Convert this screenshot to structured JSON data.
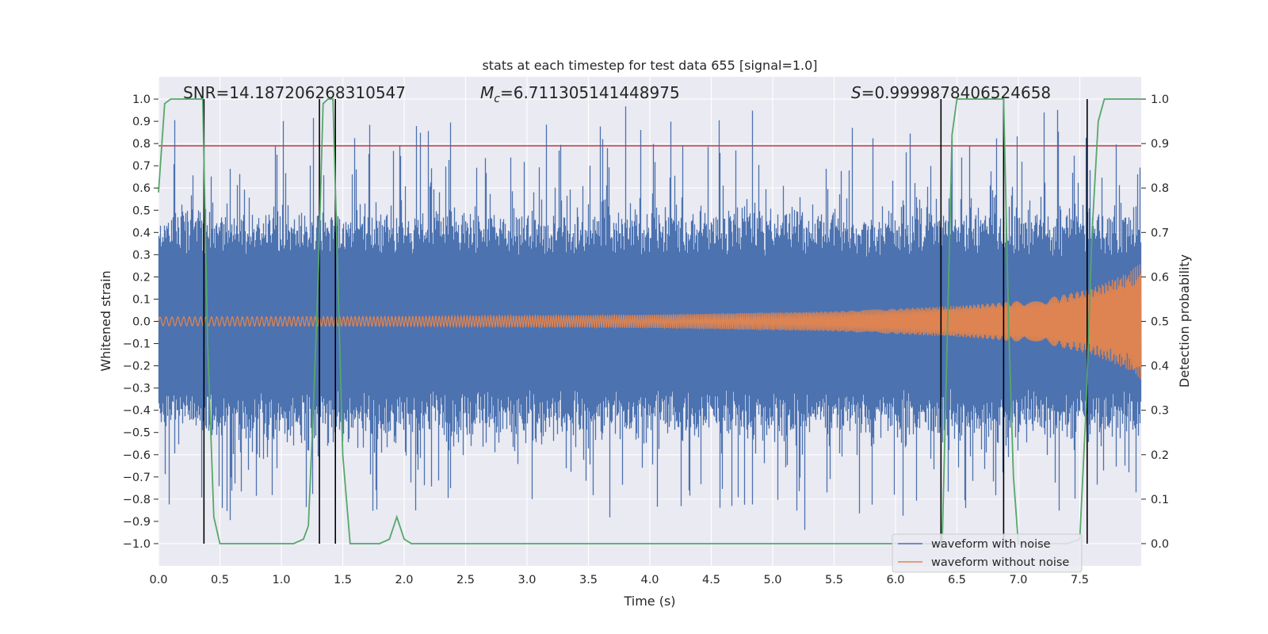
{
  "chart_data": {
    "type": "line",
    "title": "stats at each timestep for test data 655 [signal=1.0]",
    "xlabel": "Time (s)",
    "ylabel": "Whitened strain",
    "y2label": "Detection probability",
    "xlim": [
      0.0,
      8.0
    ],
    "ylim": [
      -1.1,
      1.1
    ],
    "y2lim": [
      -0.05,
      1.05
    ],
    "xticks": [
      "0.0",
      "0.5",
      "1.0",
      "1.5",
      "2.0",
      "2.5",
      "3.0",
      "3.5",
      "4.0",
      "4.5",
      "5.0",
      "5.5",
      "6.0",
      "6.5",
      "7.0",
      "7.5"
    ],
    "yticks": [
      "1.0",
      "0.9",
      "0.8",
      "0.7",
      "0.6",
      "0.5",
      "0.4",
      "0.3",
      "0.2",
      "0.1",
      "0.0",
      "−0.1",
      "−0.2",
      "−0.3",
      "−0.4",
      "−0.5",
      "−0.6",
      "−0.7",
      "−0.8",
      "−0.9",
      "−1.0"
    ],
    "y2ticks": [
      "1.0",
      "0.9",
      "0.8",
      "0.7",
      "0.6",
      "0.5",
      "0.4",
      "0.3",
      "0.2",
      "0.1",
      "0.0"
    ],
    "annotations": {
      "snr": "SNR=14.187206268310547",
      "mc_symbol": "M",
      "mc_sub": "c",
      "mc_value": "=6.711305141448975",
      "s_symbol": "S",
      "s_value": "=0.9999878406524658"
    },
    "threshold_line": {
      "y": 0.79,
      "color": "#c03d3e"
    },
    "vertical_markers": [
      0.37,
      1.31,
      1.44,
      6.37,
      6.88,
      7.56
    ],
    "legend": {
      "placement": "bottom-right",
      "entries": [
        "waveform with noise",
        "waveform without noise"
      ]
    },
    "series": [
      {
        "name": "waveform with noise",
        "color": "#4c72b0",
        "description": "noisy whitened strain, envelope approx. +/-0.4 with spikes up to 1.0 / down to -0.95",
        "envelope_upper": 0.38,
        "envelope_lower": -0.4,
        "spike_max": 0.99,
        "spike_min": -0.95
      },
      {
        "name": "waveform without noise",
        "color": "#dd8452",
        "description": "chirp waveform, amplitude grows from ~0.02 to ~0.27 near t=8",
        "amplitude": [
          [
            0.0,
            0.02
          ],
          [
            2.0,
            0.022
          ],
          [
            4.0,
            0.03
          ],
          [
            5.5,
            0.045
          ],
          [
            6.5,
            0.07
          ],
          [
            7.2,
            0.1
          ],
          [
            7.6,
            0.15
          ],
          [
            7.9,
            0.22
          ],
          [
            8.0,
            0.27
          ]
        ]
      },
      {
        "name": "detection probability",
        "color": "#55a868",
        "axis": "right",
        "x": [
          0.0,
          0.05,
          0.1,
          0.2,
          0.3,
          0.36,
          0.4,
          0.45,
          0.5,
          0.6,
          0.8,
          1.0,
          1.1,
          1.18,
          1.22,
          1.26,
          1.3,
          1.34,
          1.38,
          1.42,
          1.46,
          1.5,
          1.56,
          1.6,
          1.8,
          1.88,
          1.94,
          2.0,
          2.06,
          2.2,
          3.0,
          4.0,
          5.0,
          6.0,
          6.38,
          6.42,
          6.46,
          6.5,
          6.6,
          6.8,
          6.88,
          6.92,
          6.96,
          7.0,
          7.2,
          7.4,
          7.5,
          7.55,
          7.6,
          7.65,
          7.7,
          7.8,
          8.0
        ],
        "values": [
          0.79,
          0.99,
          1.0,
          1.0,
          1.0,
          1.0,
          0.45,
          0.06,
          0.0,
          0.0,
          0.0,
          0.0,
          0.0,
          0.01,
          0.04,
          0.3,
          0.6,
          0.99,
          1.0,
          1.0,
          0.6,
          0.2,
          0.0,
          0.0,
          0.0,
          0.01,
          0.06,
          0.01,
          0.0,
          0.0,
          0.0,
          0.0,
          0.0,
          0.0,
          0.0,
          0.45,
          0.92,
          1.0,
          1.0,
          1.0,
          1.0,
          0.5,
          0.15,
          0.0,
          0.0,
          0.0,
          0.01,
          0.3,
          0.7,
          0.95,
          1.0,
          1.0,
          1.0
        ]
      }
    ]
  }
}
